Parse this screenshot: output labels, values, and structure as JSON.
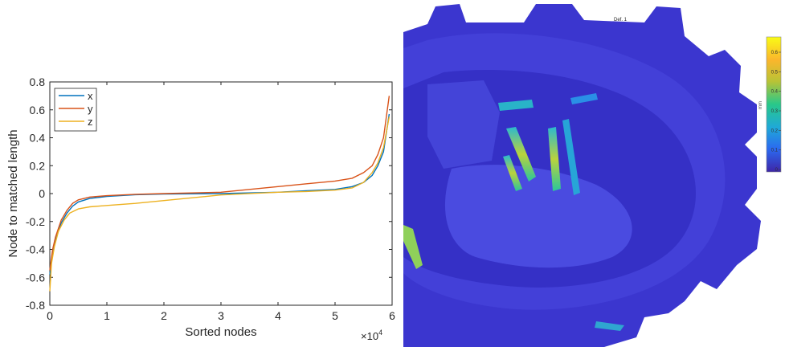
{
  "chart_data": [
    {
      "type": "line",
      "title": "",
      "xlabel": "Sorted nodes",
      "ylabel": "Node to matched length",
      "x_multiplier_label": "×10",
      "x_multiplier_exponent": "4",
      "xlim": [
        0,
        6
      ],
      "ylim": [
        -0.8,
        0.8
      ],
      "xticks": [
        0,
        1,
        2,
        3,
        4,
        5,
        6
      ],
      "xtick_labels": [
        "0",
        "1",
        "2",
        "3",
        "4",
        "5",
        "6"
      ],
      "yticks": [
        -0.8,
        -0.6,
        -0.4,
        -0.2,
        0,
        0.2,
        0.4,
        0.6,
        0.8
      ],
      "ytick_labels": [
        "-0.8",
        "-0.6",
        "-0.4",
        "-0.2",
        "0",
        "0.2",
        "0.4",
        "0.6",
        "0.8"
      ],
      "grid": false,
      "legend_position": "top-left",
      "series": [
        {
          "name": "x",
          "color": "#0072BD",
          "x": [
            0,
            0.05,
            0.1,
            0.2,
            0.3,
            0.4,
            0.5,
            0.7,
            1.0,
            1.5,
            2.0,
            3.0,
            4.0,
            4.5,
            5.0,
            5.3,
            5.5,
            5.65,
            5.75,
            5.85,
            5.95
          ],
          "y": [
            -0.58,
            -0.43,
            -0.33,
            -0.21,
            -0.14,
            -0.09,
            -0.06,
            -0.035,
            -0.02,
            -0.008,
            -0.003,
            0.0,
            0.01,
            0.02,
            0.03,
            0.05,
            0.08,
            0.13,
            0.2,
            0.3,
            0.57
          ]
        },
        {
          "name": "y",
          "color": "#D95319",
          "x": [
            0,
            0.05,
            0.1,
            0.2,
            0.3,
            0.4,
            0.5,
            0.7,
            1.0,
            1.5,
            2.0,
            3.0,
            4.0,
            4.5,
            5.0,
            5.3,
            5.5,
            5.65,
            5.75,
            5.85,
            5.95
          ],
          "y": [
            -0.55,
            -0.4,
            -0.31,
            -0.19,
            -0.12,
            -0.07,
            -0.045,
            -0.025,
            -0.015,
            -0.005,
            0.0,
            0.01,
            0.05,
            0.07,
            0.09,
            0.11,
            0.15,
            0.2,
            0.28,
            0.4,
            0.7
          ]
        },
        {
          "name": "z",
          "color": "#EDB120",
          "x": [
            0,
            0.03,
            0.08,
            0.15,
            0.25,
            0.35,
            0.5,
            0.7,
            1.0,
            1.5,
            2.0,
            3.0,
            4.0,
            4.5,
            5.0,
            5.3,
            5.5,
            5.65,
            5.75,
            5.85,
            5.95
          ],
          "y": [
            -0.7,
            -0.5,
            -0.38,
            -0.27,
            -0.19,
            -0.14,
            -0.11,
            -0.095,
            -0.085,
            -0.07,
            -0.05,
            -0.01,
            0.01,
            0.015,
            0.025,
            0.04,
            0.08,
            0.15,
            0.22,
            0.33,
            0.55
          ]
        }
      ]
    },
    {
      "type": "heatmap",
      "title": "Def. 1",
      "colorbar_label": "mm",
      "colorbar_ticks": [
        "0",
        "0.1",
        "0.2",
        "0.3",
        "0.4",
        "0.5",
        "0.6"
      ],
      "colormap": [
        "#3e26a8",
        "#2b69f0",
        "#1fa9d8",
        "#28c88a",
        "#b8c336",
        "#fbb62c",
        "#f9fb15"
      ],
      "background_color": "#3f35d0"
    }
  ]
}
